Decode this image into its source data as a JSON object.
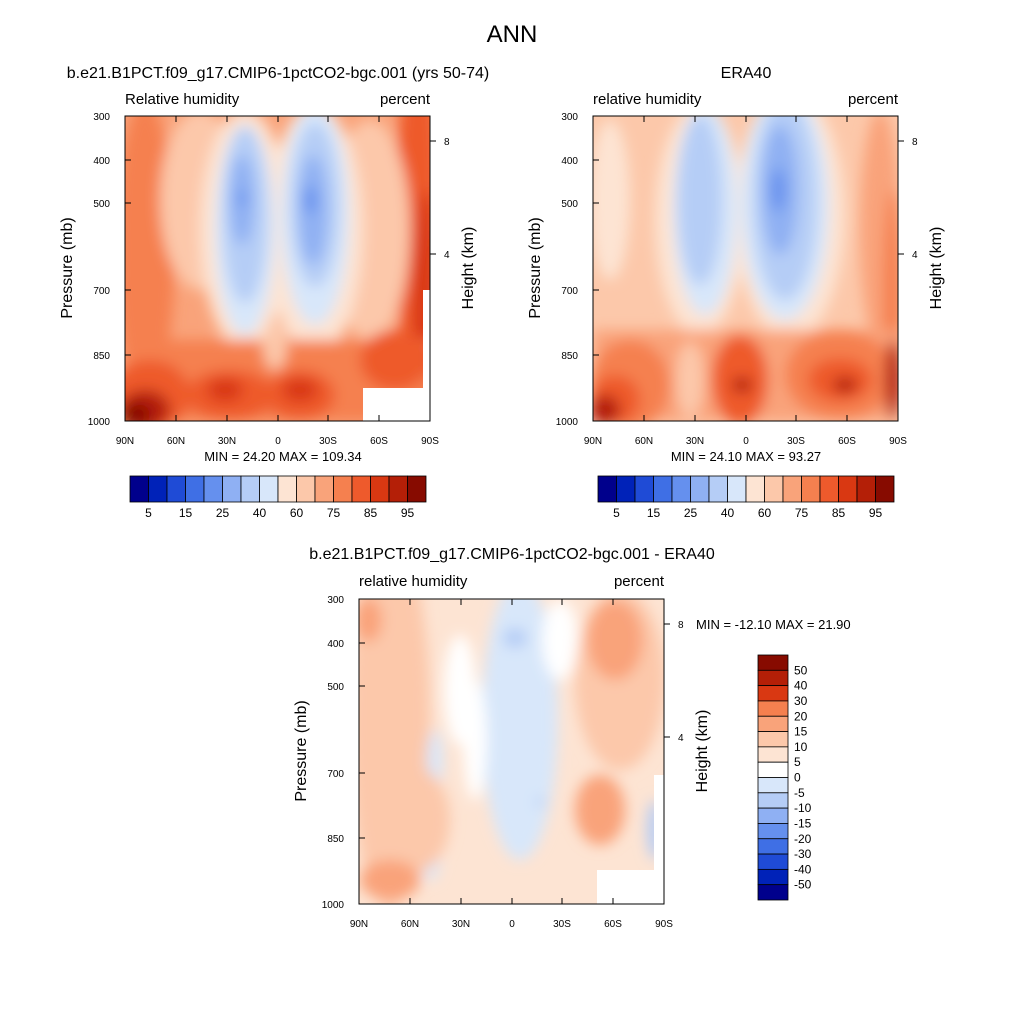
{
  "figure_title": "ANN",
  "chart_data": [
    {
      "type": "heatmap",
      "title": "b.e21.B1PCT.f09_g17.CMIP6-1pctCO2-bgc.001 (yrs 50-74)",
      "left_label": "Relative humidity",
      "right_label": "percent",
      "ylabel": "Pressure (mb)",
      "ylabel_right": "Height (km)",
      "x_ticks": [
        "90N",
        "60N",
        "30N",
        "0",
        "30S",
        "60S",
        "90S"
      ],
      "y_ticks": [
        "300",
        "400",
        "500",
        "700",
        "850",
        "1000"
      ],
      "y_right_ticks": [
        "8",
        "4"
      ],
      "x_range": [
        90,
        -90
      ],
      "y_range": [
        300,
        1000
      ],
      "y_scale": "log",
      "stats": "MIN =  24.20  MAX = 109.34",
      "colorbar_orientation": "horizontal",
      "colorbar_labels": [
        "5",
        "15",
        "25",
        "40",
        "60",
        "75",
        "85",
        "95"
      ]
    },
    {
      "type": "heatmap",
      "title": "ERA40",
      "left_label": "relative humidity",
      "right_label": "percent",
      "ylabel": "Pressure (mb)",
      "ylabel_right": "Height (km)",
      "x_ticks": [
        "90N",
        "60N",
        "30N",
        "0",
        "30S",
        "60S",
        "90S"
      ],
      "y_ticks": [
        "300",
        "400",
        "500",
        "700",
        "850",
        "1000"
      ],
      "y_right_ticks": [
        "8",
        "4"
      ],
      "x_range": [
        90,
        -90
      ],
      "y_range": [
        300,
        1000
      ],
      "y_scale": "log",
      "stats": "MIN =  24.10  MAX =  93.27",
      "colorbar_orientation": "horizontal",
      "colorbar_labels": [
        "5",
        "15",
        "25",
        "40",
        "60",
        "75",
        "85",
        "95"
      ]
    },
    {
      "type": "heatmap",
      "title": "b.e21.B1PCT.f09_g17.CMIP6-1pctCO2-bgc.001 - ERA40",
      "left_label": "relative humidity",
      "right_label": "percent",
      "ylabel": "Pressure (mb)",
      "ylabel_right": "Height (km)",
      "x_ticks": [
        "90N",
        "60N",
        "30N",
        "0",
        "30S",
        "60S",
        "90S"
      ],
      "y_ticks": [
        "300",
        "400",
        "500",
        "700",
        "850",
        "1000"
      ],
      "y_right_ticks": [
        "8",
        "4"
      ],
      "x_range": [
        90,
        -90
      ],
      "y_range": [
        300,
        1000
      ],
      "y_scale": "log",
      "stats": "MIN = -12.10  MAX =  21.90",
      "colorbar_orientation": "vertical",
      "colorbar_labels": [
        "50",
        "40",
        "30",
        "20",
        "15",
        "10",
        "5",
        "0",
        "-5",
        "-10",
        "-15",
        "-20",
        "-30",
        "-40",
        "-50"
      ]
    }
  ],
  "colors": {
    "abs_colorbar": [
      "#00008c",
      "#0022b8",
      "#1f4bd6",
      "#3f6fe5",
      "#6590ee",
      "#8fb0f3",
      "#b5cdf6",
      "#d8e7fa",
      "#fde4d3",
      "#fcc8aa",
      "#f9a37a",
      "#f5804f",
      "#ee5a2c",
      "#d93812",
      "#b41f07",
      "#870b00"
    ],
    "anom_colorbar": [
      "#870b00",
      "#b41f07",
      "#d93812",
      "#f5804f",
      "#f9a37a",
      "#fcc8aa",
      "#fde4d3",
      "#ffffff",
      "#d8e7fa",
      "#b5cdf6",
      "#8fb0f3",
      "#6590ee",
      "#3f6fe5",
      "#1f4bd6",
      "#0022b8",
      "#00008c"
    ]
  }
}
